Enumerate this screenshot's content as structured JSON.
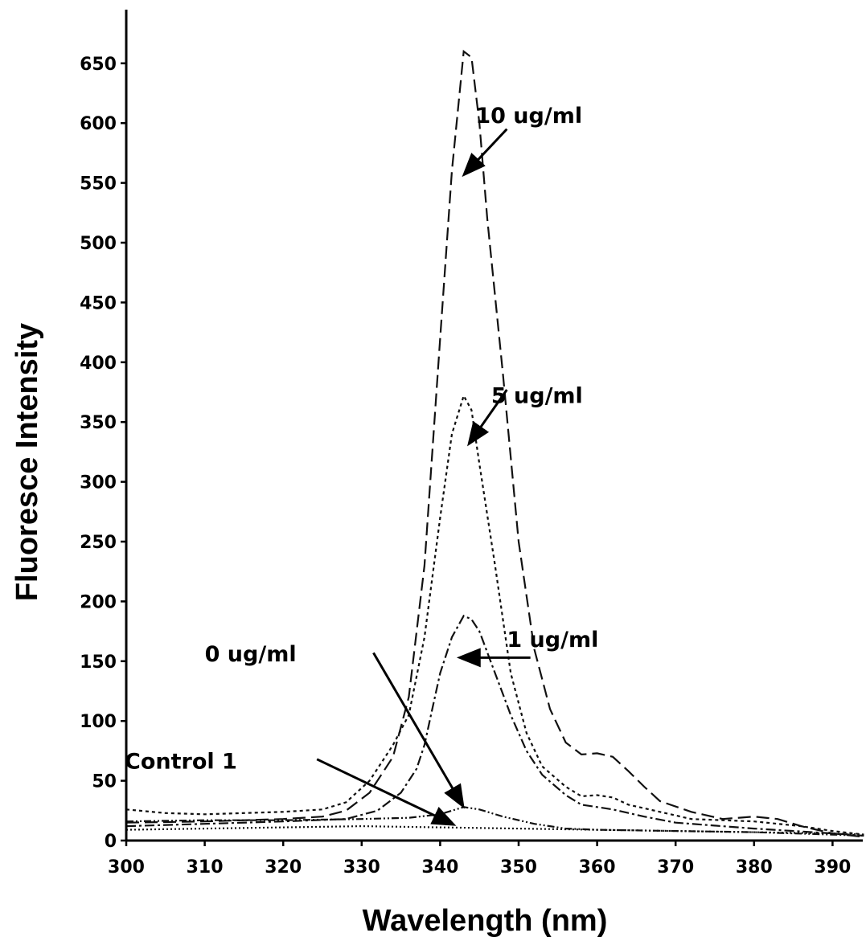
{
  "chart_data": {
    "type": "line",
    "xlabel": "Wavelength (nm)",
    "ylabel": "Fluoresce Intensity",
    "xlim": [
      300,
      394
    ],
    "ylim": [
      0,
      670
    ],
    "xticks": [
      300,
      310,
      320,
      330,
      340,
      350,
      360,
      370,
      380,
      390
    ],
    "yticks": [
      0,
      50,
      100,
      150,
      200,
      250,
      300,
      350,
      400,
      450,
      500,
      550,
      600,
      650
    ],
    "ytick_labels": [
      "0",
      "50",
      "100",
      "150",
      "200",
      "250",
      "300",
      "350",
      "400",
      "450",
      "500",
      "550",
      "600",
      "650"
    ],
    "grid": false,
    "legend": "none",
    "series": [
      {
        "name": "10 ug/ml",
        "dash": "16,7",
        "points": [
          [
            300,
            15
          ],
          [
            310,
            16
          ],
          [
            320,
            18
          ],
          [
            325,
            20
          ],
          [
            328,
            25
          ],
          [
            331,
            40
          ],
          [
            334,
            70
          ],
          [
            336,
            120
          ],
          [
            338,
            230
          ],
          [
            340,
            420
          ],
          [
            341.5,
            560
          ],
          [
            343,
            660
          ],
          [
            344,
            655
          ],
          [
            345,
            600
          ],
          [
            346,
            520
          ],
          [
            348,
            390
          ],
          [
            350,
            250
          ],
          [
            352,
            160
          ],
          [
            354,
            110
          ],
          [
            356,
            82
          ],
          [
            358,
            72
          ],
          [
            360,
            73
          ],
          [
            362,
            70
          ],
          [
            364,
            58
          ],
          [
            366,
            45
          ],
          [
            368,
            33
          ],
          [
            372,
            24
          ],
          [
            376,
            18
          ],
          [
            380,
            20
          ],
          [
            383,
            18
          ],
          [
            386,
            12
          ],
          [
            390,
            6
          ],
          [
            394,
            3
          ]
        ]
      },
      {
        "name": "5 ug/ml",
        "dash": "4,4",
        "points": [
          [
            300,
            26
          ],
          [
            305,
            23
          ],
          [
            310,
            22
          ],
          [
            320,
            24
          ],
          [
            325,
            26
          ],
          [
            328,
            32
          ],
          [
            331,
            50
          ],
          [
            334,
            80
          ],
          [
            336,
            105
          ],
          [
            338,
            170
          ],
          [
            340,
            270
          ],
          [
            341.5,
            340
          ],
          [
            343,
            372
          ],
          [
            344,
            360
          ],
          [
            345,
            315
          ],
          [
            347,
            230
          ],
          [
            349,
            140
          ],
          [
            351,
            90
          ],
          [
            353,
            62
          ],
          [
            356,
            45
          ],
          [
            358,
            37
          ],
          [
            360,
            38
          ],
          [
            362,
            36
          ],
          [
            364,
            30
          ],
          [
            368,
            24
          ],
          [
            372,
            18
          ],
          [
            380,
            16
          ],
          [
            386,
            12
          ],
          [
            390,
            8
          ],
          [
            394,
            5
          ]
        ]
      },
      {
        "name": "1 ug/ml",
        "dash": "12,4,3,4",
        "points": [
          [
            300,
            12
          ],
          [
            310,
            14
          ],
          [
            320,
            16
          ],
          [
            328,
            18
          ],
          [
            332,
            25
          ],
          [
            335,
            40
          ],
          [
            337,
            60
          ],
          [
            338,
            80
          ],
          [
            339,
            110
          ],
          [
            340,
            140
          ],
          [
            341.5,
            170
          ],
          [
            343,
            188
          ],
          [
            344,
            185
          ],
          [
            345,
            175
          ],
          [
            347,
            140
          ],
          [
            349,
            105
          ],
          [
            351,
            75
          ],
          [
            353,
            55
          ],
          [
            356,
            38
          ],
          [
            358,
            30
          ],
          [
            360,
            28
          ],
          [
            362,
            26
          ],
          [
            366,
            20
          ],
          [
            370,
            15
          ],
          [
            380,
            10
          ],
          [
            390,
            6
          ],
          [
            394,
            4
          ]
        ]
      },
      {
        "name": "0 ug/ml",
        "dash": "9,3,2,3,2,3",
        "points": [
          [
            300,
            16
          ],
          [
            310,
            17
          ],
          [
            320,
            17
          ],
          [
            330,
            18
          ],
          [
            336,
            19
          ],
          [
            340,
            22
          ],
          [
            342,
            26
          ],
          [
            343,
            28
          ],
          [
            345,
            26
          ],
          [
            348,
            20
          ],
          [
            352,
            14
          ],
          [
            356,
            10
          ],
          [
            360,
            9
          ],
          [
            370,
            8
          ],
          [
            380,
            7
          ],
          [
            390,
            5
          ],
          [
            394,
            4
          ]
        ]
      },
      {
        "name": "Control 1",
        "dash": "2,3",
        "points": [
          [
            300,
            9
          ],
          [
            310,
            10
          ],
          [
            320,
            11
          ],
          [
            330,
            12
          ],
          [
            340,
            11
          ],
          [
            350,
            10
          ],
          [
            360,
            9
          ],
          [
            370,
            8
          ],
          [
            380,
            7
          ],
          [
            390,
            6
          ],
          [
            394,
            5
          ]
        ]
      }
    ],
    "annotations": [
      {
        "text": "10 ug/ml",
        "label_at": [
          344.5,
          600
        ],
        "arrow_from": [
          348.5,
          595
        ],
        "arrow_to": [
          343.2,
          558
        ]
      },
      {
        "text": "5 ug/ml",
        "label_at": [
          346.5,
          366
        ],
        "arrow_from": [
          348.5,
          377
        ],
        "arrow_to": [
          343.8,
          333
        ]
      },
      {
        "text": "1 ug/ml",
        "label_at": [
          348.5,
          162
        ],
        "arrow_from": [
          351.5,
          153
        ],
        "arrow_to": [
          342.7,
          153
        ]
      },
      {
        "text": "0 ug/ml",
        "label_at": [
          310,
          150
        ],
        "arrow_from": [
          331.5,
          157
        ],
        "arrow_to": [
          342.8,
          30
        ]
      },
      {
        "text": "Control 1",
        "label_at": [
          299.8,
          60
        ],
        "arrow_from": [
          324.3,
          68
        ],
        "arrow_to": [
          341.5,
          14
        ]
      }
    ]
  }
}
